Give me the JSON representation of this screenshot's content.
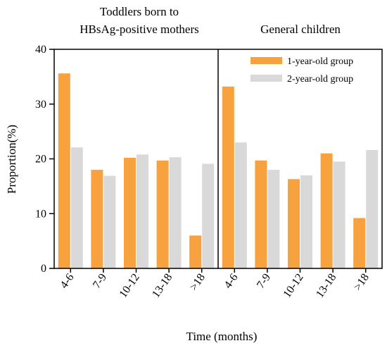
{
  "chart_data": {
    "type": "bar",
    "ylabel": "Proportion(%)",
    "xlabel": "Time (months)",
    "ylim": [
      0,
      40
    ],
    "yticks": [
      0,
      10,
      20,
      30,
      40
    ],
    "categories": [
      "4-6",
      "7-9",
      "10-12",
      "13-18",
      ">18"
    ],
    "legend": {
      "placement": "top-right"
    },
    "colors": {
      "1-year-old group": "#F7A23E",
      "2-year-old group": "#D9D9D9"
    },
    "panels": [
      {
        "title_lines": [
          "Toddlers born to",
          "HBsAg-positive mothers"
        ],
        "series": [
          {
            "name": "1-year-old group",
            "values": [
              35.6,
              18.0,
              20.2,
              19.7,
              6.0
            ]
          },
          {
            "name": "2-year-old group",
            "values": [
              22.1,
              16.9,
              20.8,
              20.3,
              19.1
            ]
          }
        ]
      },
      {
        "title_lines": [
          "General children"
        ],
        "series": [
          {
            "name": "1-year-old group",
            "values": [
              33.2,
              19.7,
              16.3,
              21.0,
              9.2
            ]
          },
          {
            "name": "2-year-old group",
            "values": [
              23.0,
              18.0,
              17.0,
              19.5,
              21.6
            ]
          }
        ]
      }
    ]
  }
}
